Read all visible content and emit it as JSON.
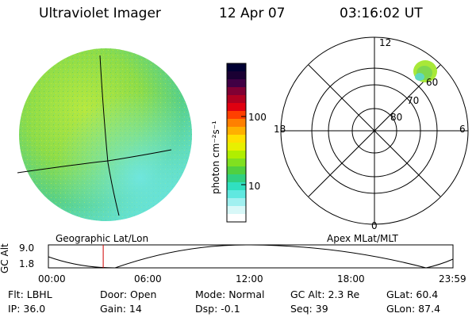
{
  "header": {
    "title": "Ultraviolet Imager",
    "date": "12 Apr 07",
    "time": "03:16:02 UT"
  },
  "colorbar": {
    "unit_label": "photon cm⁻²s⁻¹",
    "ticks": [
      "100",
      "10"
    ],
    "colors": [
      "#000033",
      "#1a0033",
      "#400044",
      "#800033",
      "#b00020",
      "#e00010",
      "#ff4000",
      "#ff8000",
      "#ffb000",
      "#ffe000",
      "#e8f000",
      "#b0ee00",
      "#80e020",
      "#50d040",
      "#30d080",
      "#30e0c0",
      "#60e8e0",
      "#a0f0f0",
      "#d8f8f8",
      "#ffffff"
    ]
  },
  "polar": {
    "mlt_labels": {
      "top": "12",
      "left": "18",
      "right": "6",
      "bottom": "0"
    },
    "lat_labels": [
      "60",
      "70",
      "80"
    ]
  },
  "labels": {
    "geographic": "Geographic Lat/Lon",
    "apex": "Apex MLat/MLT"
  },
  "altitude_plot": {
    "ylabel": "GC Alt",
    "y_ticks": [
      "9.0",
      "1.8"
    ],
    "x_ticks": [
      "00:00",
      "06:00",
      "12:00",
      "18:00",
      "23:59"
    ],
    "current_time_fraction": 0.1355,
    "marker_color": "#d00000"
  },
  "status": {
    "filter": "Flt: LBHL",
    "ip": "IP: 36.0",
    "door": "Door: Open",
    "gain": "Gain: 14",
    "mode": "Mode: Normal",
    "dsp": "Dsp:   -0.1",
    "gc_alt": "GC Alt: 2.3 Re",
    "seq": "Seq: 39",
    "glat": "GLat:  60.4",
    "glon": "GLon:  87.4"
  }
}
